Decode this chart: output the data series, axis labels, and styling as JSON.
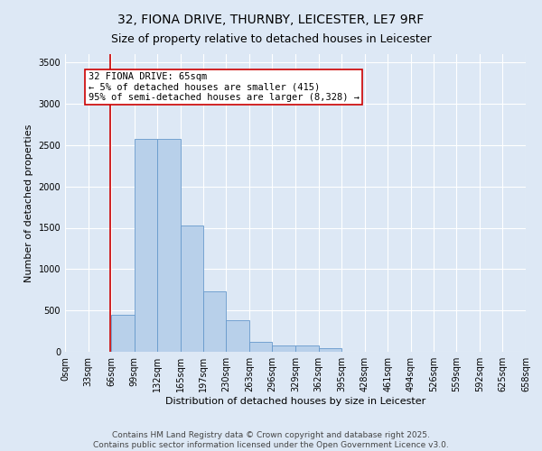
{
  "title_line1": "32, FIONA DRIVE, THURNBY, LEICESTER, LE7 9RF",
  "title_line2": "Size of property relative to detached houses in Leicester",
  "xlabel": "Distribution of detached houses by size in Leicester",
  "ylabel": "Number of detached properties",
  "bar_color": "#b8d0ea",
  "bar_edge_color": "#6699cc",
  "background_color": "#dde8f5",
  "grid_color": "#ffffff",
  "annotation_line_color": "#cc0000",
  "annotation_box_color": "#ffffff",
  "annotation_box_edge": "#cc0000",
  "bin_edges": [
    0,
    33,
    66,
    99,
    132,
    165,
    197,
    230,
    263,
    296,
    329,
    362,
    395,
    428,
    461,
    494,
    526,
    559,
    592,
    625,
    658
  ],
  "bar_heights": [
    2,
    5,
    450,
    2570,
    2570,
    1530,
    730,
    380,
    125,
    75,
    75,
    40,
    0,
    0,
    0,
    0,
    0,
    0,
    0,
    0
  ],
  "property_size": 65,
  "annotation_line1": "32 FIONA DRIVE: 65sqm",
  "annotation_line2": "← 5% of detached houses are smaller (415)",
  "annotation_line3": "95% of semi-detached houses are larger (8,328) →",
  "ylim": [
    0,
    3600
  ],
  "yticks": [
    0,
    500,
    1000,
    1500,
    2000,
    2500,
    3000,
    3500
  ],
  "footer_line1": "Contains HM Land Registry data © Crown copyright and database right 2025.",
  "footer_line2": "Contains public sector information licensed under the Open Government Licence v3.0.",
  "title_fontsize": 10,
  "axis_label_fontsize": 8,
  "tick_fontsize": 7,
  "annotation_fontsize": 7.5,
  "footer_fontsize": 6.5
}
